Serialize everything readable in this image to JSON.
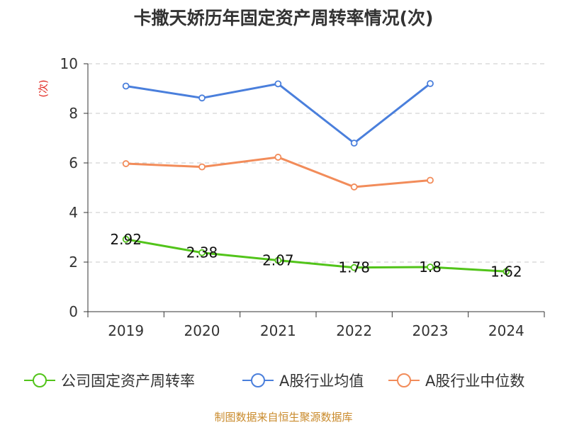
{
  "chart_data": {
    "type": "line",
    "title": "卡撒天娇历年固定资产周转率情况(次)",
    "ylabel": "(次)",
    "xlabel": "",
    "categories": [
      "2019",
      "2020",
      "2021",
      "2022",
      "2023",
      "2024"
    ],
    "ylim": [
      0,
      10
    ],
    "yticks": [
      0,
      2,
      4,
      6,
      8,
      10
    ],
    "grid": true,
    "legend_position": "bottom",
    "series": [
      {
        "name": "公司固定资产周转率",
        "color": "#52c41a",
        "values": [
          2.92,
          2.38,
          2.07,
          1.78,
          1.8,
          1.62
        ],
        "labels": [
          "2.92",
          "2.38",
          "2.07",
          "1.78",
          "1.8",
          "1.62"
        ]
      },
      {
        "name": "A股行业均值",
        "color": "#4a7fdc",
        "values": [
          9.1,
          8.62,
          9.19,
          6.8,
          9.2,
          null
        ]
      },
      {
        "name": "A股行业中位数",
        "color": "#f28c5a",
        "values": [
          5.97,
          5.84,
          6.23,
          5.03,
          5.3,
          null
        ]
      }
    ]
  },
  "source": "制图数据来自恒生聚源数据库"
}
